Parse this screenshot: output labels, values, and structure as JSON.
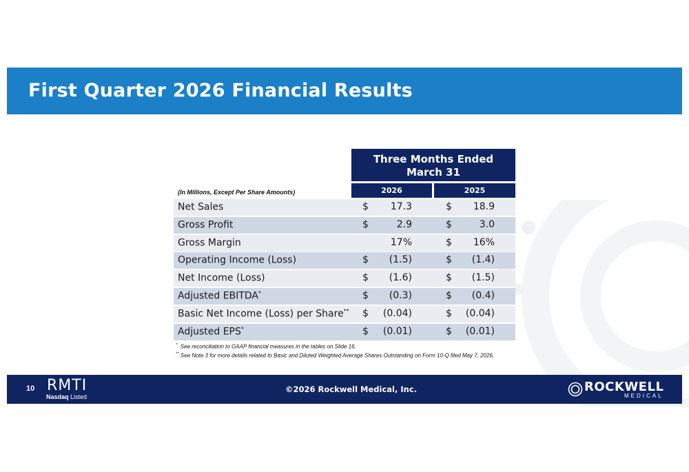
{
  "slide": {
    "title": "First Quarter 2026 Financial Results",
    "page_number": "10"
  },
  "table": {
    "header_line1": "Three Months Ended",
    "header_line2": "March 31",
    "col1": "2026",
    "col2": "2025",
    "units_note": "(In Millions, Except Per Share Amounts)",
    "rows": [
      {
        "label": "Net Sales",
        "sup": "",
        "d1": "$",
        "v1": "17.3",
        "d2": "$",
        "v2": "18.9"
      },
      {
        "label": "Gross Profit",
        "sup": "",
        "d1": "$",
        "v1": "2.9",
        "d2": "$",
        "v2": "3.0"
      },
      {
        "label": "Gross Margin",
        "sup": "",
        "d1": "",
        "v1": "17%",
        "d2": "$",
        "v2": "16%"
      },
      {
        "label": "Operating Income (Loss)",
        "sup": "",
        "d1": "$",
        "v1": "(1.5)",
        "d2": "$",
        "v2": "(1.4)"
      },
      {
        "label": "Net Income (Loss)",
        "sup": "",
        "d1": "$",
        "v1": "(1.6)",
        "d2": "$",
        "v2": "(1.5)"
      },
      {
        "label": "Adjusted EBITDA",
        "sup": "*",
        "d1": "$",
        "v1": "(0.3)",
        "d2": "$",
        "v2": "(0.4)"
      },
      {
        "label": "Basic Net Income (Loss) per Share",
        "sup": "**",
        "d1": "$",
        "v1": "(0.04)",
        "d2": "$",
        "v2": "(0.04)"
      },
      {
        "label": "Adjusted EPS",
        "sup": "*",
        "d1": "$",
        "v1": "(0.01)",
        "d2": "$",
        "v2": "(0.01)"
      }
    ]
  },
  "footnotes": {
    "note1_mark": "*",
    "note1": "See reconciliation to GAAP financial measures in the tables on Slide 16.",
    "note2_mark": "**",
    "note2": "See Note 3 for more details related to Basic and Diluted Weighted Average Shares Outstanding on Form 10-Q filed May 7, 2026."
  },
  "footer": {
    "ticker": "RMTI",
    "exchange": "Nasdaq",
    "listed": "Listed",
    "copyright": "©2026 Rockwell Medical, Inc.",
    "logo_name": "ROCKWELL",
    "logo_sub": "MEDICAL"
  },
  "colors": {
    "title_bar": "#1b80c8",
    "navy": "#0f2461",
    "row_light": "#e9ecf1",
    "row_dark": "#cfd7e4"
  }
}
